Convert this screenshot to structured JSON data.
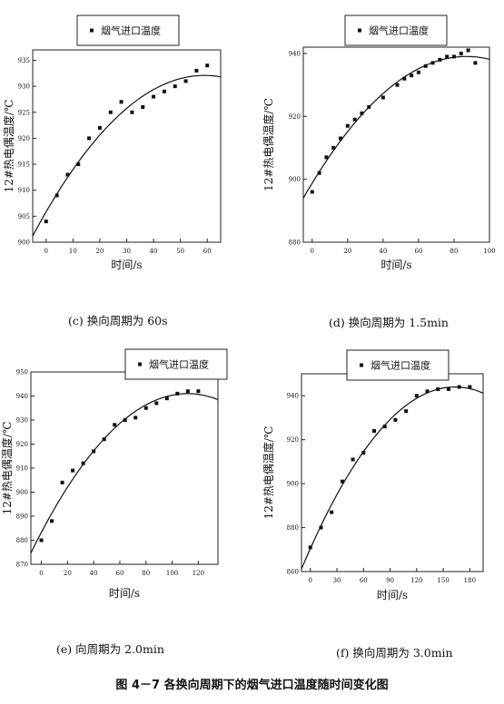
{
  "figure_title": "图 4－7 各换向周期下的烟气进口温度随时间变化图",
  "chart_data": [
    {
      "type": "scatter",
      "caption": "(c) 换向周期为 60s",
      "xlabel": "时间/s",
      "ylabel": "12#热电偶温度/℃",
      "legend": "烟气进口温度",
      "legend_position": "top-right",
      "xlim": [
        -5,
        65
      ],
      "ylim": [
        900,
        937
      ],
      "x_ticks": [
        0,
        10,
        20,
        30,
        40,
        50,
        60
      ],
      "y_ticks": [
        900,
        905,
        910,
        915,
        920,
        925,
        930,
        935
      ],
      "grid": false,
      "x": [
        0,
        4,
        8,
        12,
        16,
        20,
        24,
        28,
        32,
        36,
        40,
        44,
        48,
        52,
        56,
        60
      ],
      "y": [
        904,
        909,
        913,
        915,
        920,
        922,
        925,
        927,
        925,
        926,
        928,
        929,
        930,
        931,
        933,
        934
      ],
      "fit_curve": "quadratic"
    },
    {
      "type": "scatter",
      "caption": "(d) 换向周期为 1.5min",
      "xlabel": "时间/s",
      "ylabel": "12#热电偶温度/℃",
      "legend": "烟气进口温度",
      "legend_position": "top-right",
      "xlim": [
        -5,
        100
      ],
      "ylim": [
        880,
        942
      ],
      "x_ticks": [
        0,
        20,
        40,
        60,
        80,
        100
      ],
      "y_ticks": [
        880,
        900,
        920,
        940
      ],
      "grid": false,
      "x": [
        0,
        4,
        8,
        12,
        16,
        20,
        24,
        28,
        32,
        40,
        48,
        52,
        56,
        60,
        64,
        68,
        72,
        76,
        80,
        84,
        88,
        92
      ],
      "y": [
        896,
        902,
        907,
        910,
        913,
        917,
        919,
        921,
        923,
        926,
        930,
        932,
        933,
        934,
        936,
        937,
        938,
        939,
        939,
        940,
        941,
        937
      ],
      "fit_curve": "quadratic"
    },
    {
      "type": "scatter",
      "caption": "(e) 向周期为 2.0min",
      "xlabel": "时间/s",
      "ylabel": "12#热电偶温度/℃",
      "legend": "烟气进口温度",
      "legend_position": "top-right",
      "xlim": [
        -8,
        135
      ],
      "ylim": [
        870,
        950
      ],
      "x_ticks": [
        0,
        20,
        40,
        60,
        80,
        100,
        120
      ],
      "y_ticks": [
        870,
        880,
        890,
        900,
        910,
        920,
        930,
        940,
        950
      ],
      "grid": false,
      "x": [
        0,
        8,
        16,
        24,
        32,
        40,
        48,
        56,
        64,
        72,
        80,
        88,
        96,
        104,
        112,
        120
      ],
      "y": [
        880,
        888,
        904,
        909,
        912,
        917,
        922,
        928,
        930,
        931,
        935,
        937,
        939,
        941,
        942,
        942
      ],
      "fit_curve": "quadratic"
    },
    {
      "type": "scatter",
      "caption": "(f) 换向周期为 3.0min",
      "xlabel": "时间/s",
      "ylabel": "12#热电偶温度/℃",
      "legend": "烟气进口温度",
      "legend_position": "top-right",
      "xlim": [
        -10,
        195
      ],
      "ylim": [
        860,
        950
      ],
      "x_ticks": [
        0,
        30,
        60,
        90,
        120,
        150,
        180
      ],
      "y_ticks": [
        860,
        880,
        900,
        920,
        940
      ],
      "grid": false,
      "x": [
        0,
        12,
        24,
        36,
        48,
        60,
        72,
        84,
        96,
        108,
        120,
        132,
        144,
        156,
        168,
        180
      ],
      "y": [
        871,
        880,
        887,
        901,
        911,
        914,
        924,
        926,
        929,
        933,
        940,
        942,
        943,
        943,
        944,
        944
      ],
      "fit_curve": "quadratic"
    }
  ]
}
